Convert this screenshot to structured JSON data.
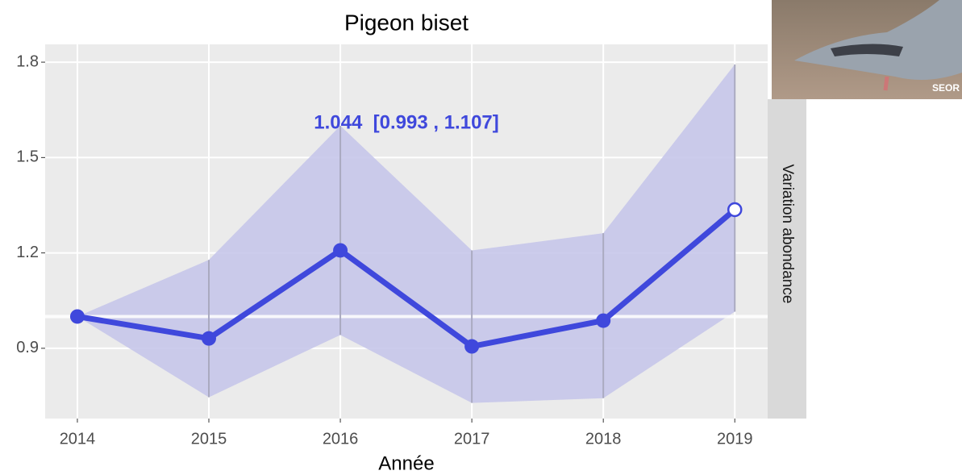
{
  "chart_data": {
    "type": "line",
    "title": "Pigeon biset",
    "x_label": "Année",
    "strip_label": "Variation abondance",
    "annotation": "1.044  [0.993 , 1.107]",
    "x": [
      2014,
      2015,
      2016,
      2017,
      2018,
      2019
    ],
    "values": [
      1.0,
      0.931,
      1.208,
      0.906,
      0.987,
      1.336
    ],
    "lower": [
      1.0,
      0.746,
      0.942,
      0.728,
      0.743,
      1.015
    ],
    "upper": [
      1.0,
      1.178,
      1.6,
      1.208,
      1.262,
      1.793
    ],
    "color": "#3f48dc",
    "ribbon_color": "#c6c7ea",
    "open_point_index": 5,
    "reference_line": 1.0,
    "xlim": [
      2013.755,
      2019.25
    ],
    "xticks": [
      2014,
      2015,
      2016,
      2017,
      2018,
      2019
    ],
    "ylim": [
      0.679,
      1.856
    ],
    "yticks": [
      0.9,
      1.2,
      1.5,
      1.8
    ],
    "grid": true
  },
  "photo": {
    "credit": "SEOR"
  }
}
